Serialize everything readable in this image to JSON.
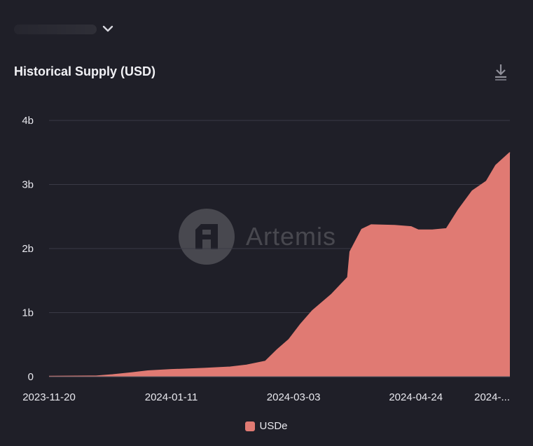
{
  "header": {
    "title": "Historical Supply (USD)",
    "download_icon": "download-icon",
    "selector_icon": "chevron-down-icon"
  },
  "watermark": {
    "text": "Artemis"
  },
  "colors": {
    "background": "#1f1f28",
    "series": "#e07a73",
    "grid": "#3a3a46",
    "axis_text": "#e8e8ee"
  },
  "chart_data": {
    "type": "area",
    "title": "Historical Supply (USD)",
    "xlabel": "",
    "ylabel": "",
    "ylim": [
      0,
      4000000000
    ],
    "yticks": [
      {
        "value": 0,
        "label": "0"
      },
      {
        "value": 1000000000,
        "label": "1b"
      },
      {
        "value": 2000000000,
        "label": "2b"
      },
      {
        "value": 3000000000,
        "label": "3b"
      },
      {
        "value": 4000000000,
        "label": "4b"
      }
    ],
    "xlim": [
      "2023-11-20",
      "2024-06-03"
    ],
    "xticks": [
      {
        "value": "2023-11-20",
        "label": "2023-11-20"
      },
      {
        "value": "2024-01-11",
        "label": "2024-01-11"
      },
      {
        "value": "2024-03-03",
        "label": "2024-03-03"
      },
      {
        "value": "2024-04-24",
        "label": "2024-04-24"
      },
      {
        "value": "2024-06-03",
        "label": "2024-..."
      }
    ],
    "grid": true,
    "legend_position": "bottom-center",
    "series": [
      {
        "name": "USDe",
        "color": "#e07a73",
        "points": [
          [
            "2023-11-20",
            5000000
          ],
          [
            "2023-12-10",
            10000000
          ],
          [
            "2023-12-17",
            30000000
          ],
          [
            "2023-12-25",
            60000000
          ],
          [
            "2024-01-01",
            90000000
          ],
          [
            "2024-01-11",
            110000000
          ],
          [
            "2024-01-25",
            130000000
          ],
          [
            "2024-02-05",
            150000000
          ],
          [
            "2024-02-12",
            180000000
          ],
          [
            "2024-02-20",
            240000000
          ],
          [
            "2024-02-25",
            420000000
          ],
          [
            "2024-03-01",
            580000000
          ],
          [
            "2024-03-06",
            820000000
          ],
          [
            "2024-03-11",
            1030000000
          ],
          [
            "2024-03-19",
            1280000000
          ],
          [
            "2024-03-26",
            1550000000
          ],
          [
            "2024-03-27",
            1950000000
          ],
          [
            "2024-04-01",
            2300000000
          ],
          [
            "2024-04-05",
            2370000000
          ],
          [
            "2024-04-15",
            2360000000
          ],
          [
            "2024-04-22",
            2340000000
          ],
          [
            "2024-04-25",
            2290000000
          ],
          [
            "2024-05-01",
            2290000000
          ],
          [
            "2024-05-07",
            2310000000
          ],
          [
            "2024-05-12",
            2600000000
          ],
          [
            "2024-05-18",
            2900000000
          ],
          [
            "2024-05-24",
            3050000000
          ],
          [
            "2024-05-28",
            3300000000
          ],
          [
            "2024-06-03",
            3500000000
          ]
        ]
      }
    ]
  }
}
